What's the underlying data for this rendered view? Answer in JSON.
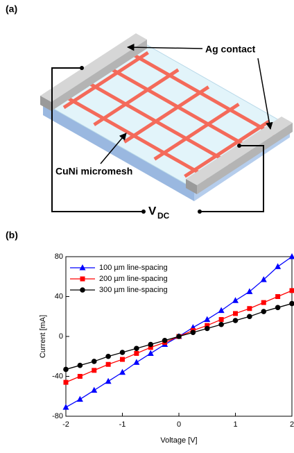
{
  "diagram": {
    "label": "(a)",
    "contact_label": "Ag contact",
    "mesh_label": "CuNi micromesh",
    "voltage_symbol": "V",
    "voltage_subscript": "DC"
  },
  "chart_label": "(b)",
  "chart_data": {
    "type": "line",
    "xlabel": "Voltage [V]",
    "ylabel": "Current [mA]",
    "x": [
      -2,
      -1.75,
      -1.5,
      -1.25,
      -1,
      -0.75,
      -0.5,
      -0.25,
      0,
      0.25,
      0.5,
      0.75,
      1,
      1.25,
      1.5,
      1.75,
      2
    ],
    "series": [
      {
        "name": "100 µm line-spacing",
        "color": "#0000ff",
        "marker": "triangle",
        "values": [
          -71,
          -63,
          -54,
          -45,
          -36,
          -26,
          -17,
          -8,
          0,
          9,
          17,
          26,
          36,
          45,
          57,
          70,
          80
        ]
      },
      {
        "name": "200 µm line-spacing",
        "color": "#ff0000",
        "marker": "square",
        "values": [
          -46,
          -40,
          -34,
          -28,
          -23,
          -17,
          -11,
          -6,
          0,
          6,
          11,
          17,
          23,
          28,
          34,
          40,
          46
        ]
      },
      {
        "name": "300 µm line-spacing",
        "color": "#000000",
        "marker": "circle",
        "values": [
          -33,
          -29,
          -25,
          -20,
          -16,
          -12,
          -8,
          -4,
          0,
          4,
          8,
          12,
          16,
          20,
          25,
          29,
          33
        ]
      }
    ],
    "xlim": [
      -2,
      2
    ],
    "ylim": [
      -80,
      80
    ],
    "xticks": [
      -2,
      -1,
      0,
      1,
      2
    ],
    "yticks": [
      -80,
      -40,
      0,
      40,
      80
    ],
    "grid": false,
    "legend": "upper left"
  }
}
